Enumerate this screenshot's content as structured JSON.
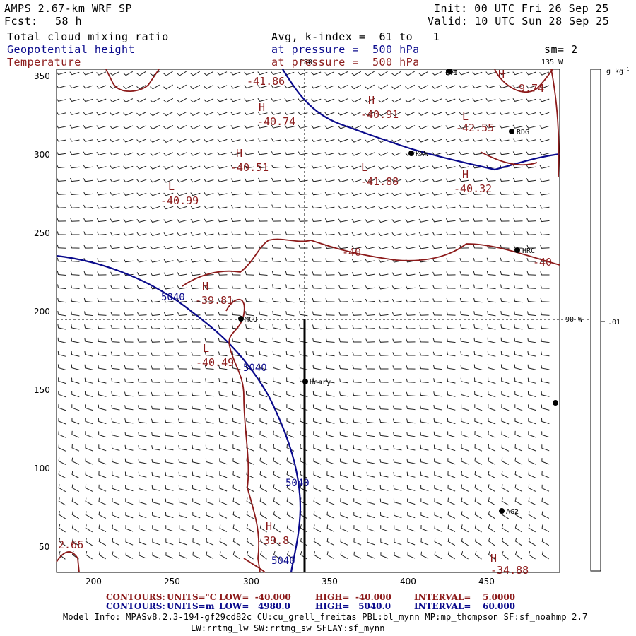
{
  "header": {
    "model": "AMPS 2.67-km WRF SP",
    "fcst_label": "Fcst:",
    "fcst_value": "58 h",
    "init": "Init: 00 UTC Fri 26 Sep 25",
    "valid": "Valid: 10 UTC Sun 28 Sep 25",
    "field1": "Total cloud mixing ratio",
    "field2": "Geopotential height",
    "field3": "Temperature",
    "avg_k": "Avg, k-index =  61 to   1",
    "pressure1": "at pressure =  500 hPa",
    "pressure2": "at pressure =  500 hPa",
    "sm": "sm= 2"
  },
  "colors": {
    "height": "#0a0a8c",
    "temperature": "#8c1a1a"
  },
  "axes": {
    "x_ticks": [
      "200",
      "250",
      "300",
      "350",
      "400",
      "450"
    ],
    "y_ticks": [
      "50",
      "100",
      "150",
      "200",
      "250",
      "300",
      "350"
    ],
    "lon_top": "180",
    "lon_top_right": "135 W",
    "lon_right": "90 W"
  },
  "colorbar": {
    "unit": "g kg",
    "unit_sup": "-1",
    "label": ".01"
  },
  "map_labels": {
    "heights": [
      "5040",
      "5040",
      "5040",
      "5040"
    ],
    "temp_values": [
      "-41.86",
      "-40.74",
      "-40.91",
      "-42.55",
      "-40.51",
      "-41.88",
      "-40.32",
      "-40.99",
      "-40",
      "-40",
      "-39.81",
      "-40.49",
      "-39.8",
      "2.66",
      "-34.88",
      "9.74"
    ],
    "highs": [
      "H",
      "H",
      "H",
      "H",
      "H",
      "H",
      "H",
      "H"
    ],
    "lows": [
      "L",
      "L",
      "L",
      "L"
    ],
    "stations": [
      "LVI",
      "RDG",
      "KXW",
      "HRC",
      "MCQ",
      "Henry",
      "AG2"
    ]
  },
  "footer": {
    "line1_contours": "CONTOURS:",
    "line1_units": "UNITS=°C",
    "line1_low": "LOW=  -40.000",
    "line1_high": "HIGH=  -40.000",
    "line1_interval": "INTERVAL=    5.0000",
    "line2_contours": "CONTOURS:",
    "line2_units": "UNITS=m",
    "line2_low": "LOW=   4980.0",
    "line2_high": "HIGH=   5040.0",
    "line2_interval": "INTERVAL=    60.000",
    "model_info": "Model Info: MPASv8.2.3-194-gf29cd82c CU:cu_grell_freitas PBL:bl_mynn MP:mp_thompson SF:sf_noahmp 2.7",
    "model_info2": "LW:rrtmg_lw SW:rrtmg_sw SFLAY:sf_mynn"
  }
}
